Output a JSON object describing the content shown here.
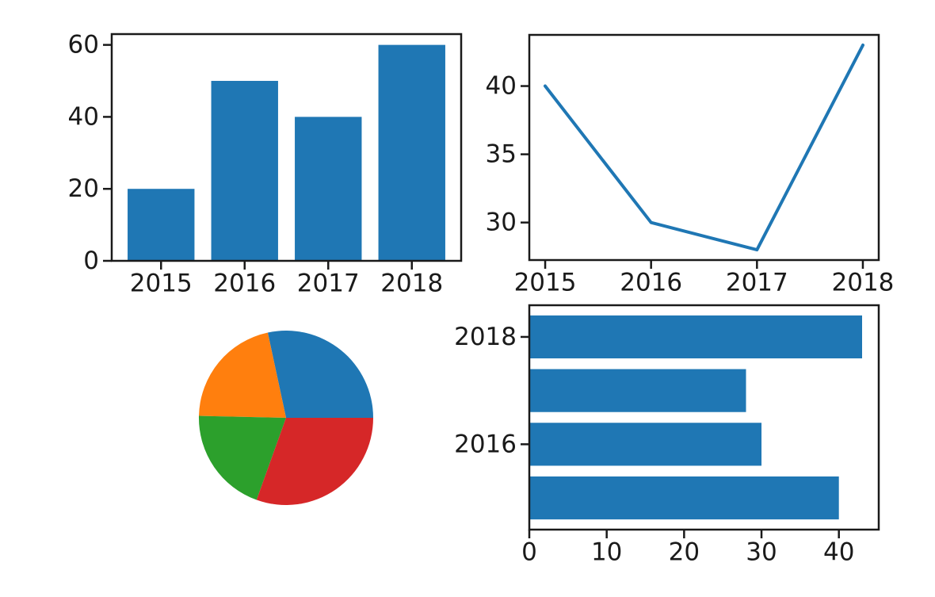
{
  "figure": {
    "background": "#ffffff",
    "axis_color": "#1a1a1a",
    "tick_label_color": "#1a1a1a",
    "accent_blue": "#1f77b4"
  },
  "chart_data": [
    {
      "id": "bar",
      "type": "bar",
      "position": "top-left",
      "categories": [
        "2015",
        "2016",
        "2017",
        "2018"
      ],
      "x": [
        2015,
        2016,
        2017,
        2018
      ],
      "values": [
        20,
        50,
        40,
        60
      ],
      "bar_color": "#1f77b4",
      "bar_width": 0.8,
      "xticks": [
        2015,
        2016,
        2017,
        2018
      ],
      "yticks": [
        0,
        20,
        40,
        60
      ],
      "xlim": [
        2014.41,
        2018.59
      ],
      "ylim": [
        0,
        63
      ],
      "grid": false,
      "legend": "none",
      "title": ""
    },
    {
      "id": "line",
      "type": "line",
      "position": "top-right",
      "x": [
        2015,
        2016,
        2017,
        2018
      ],
      "y": [
        40,
        30,
        28,
        43
      ],
      "line_color": "#1f77b4",
      "xticks": [
        2015,
        2016,
        2017,
        2018
      ],
      "yticks": [
        30,
        35,
        40
      ],
      "xlim": [
        2014.85,
        2018.15
      ],
      "ylim": [
        27.25,
        43.75
      ],
      "grid": false,
      "legend": "none",
      "title": ""
    },
    {
      "id": "pie",
      "type": "pie",
      "position": "bottom-left",
      "slices": [
        {
          "name": "blue-slice",
          "value": 40,
          "color": "#1f77b4"
        },
        {
          "name": "orange-slice",
          "value": 30,
          "color": "#ff7f0e"
        },
        {
          "name": "green-slice",
          "value": 28,
          "color": "#2ca02c"
        },
        {
          "name": "red-slice",
          "value": 43,
          "color": "#d62728"
        }
      ],
      "start_angle": 0,
      "direction": "counterclockwise",
      "labels_shown": false,
      "legend": "none",
      "title": ""
    },
    {
      "id": "barh",
      "type": "barh",
      "position": "bottom-right",
      "categories": [
        "2015",
        "2016",
        "2017",
        "2018"
      ],
      "y": [
        2015,
        2016,
        2017,
        2018
      ],
      "values": [
        40,
        30,
        28,
        43
      ],
      "bar_color": "#1f77b4",
      "bar_height": 0.8,
      "xticks": [
        0,
        10,
        20,
        30,
        40
      ],
      "yticks": [
        2016,
        2018
      ],
      "ytick_labels": [
        "2016",
        "2018"
      ],
      "xlim": [
        0,
        45.15
      ],
      "ylim": [
        2014.41,
        2018.59
      ],
      "grid": false,
      "legend": "none",
      "title": ""
    }
  ]
}
